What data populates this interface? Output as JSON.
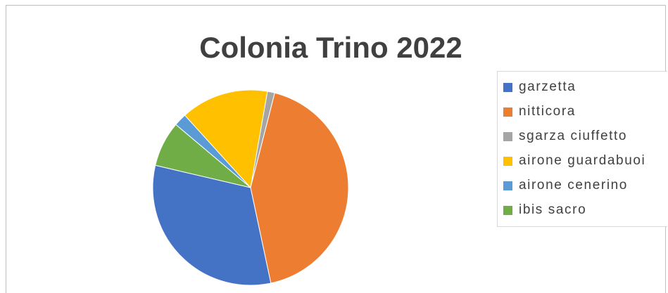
{
  "chart_data": {
    "type": "pie",
    "title": "Colonia Trino 2022",
    "legend_position": "right",
    "slices": [
      {
        "label": "garzetta",
        "value": 32,
        "color": "#4472c4"
      },
      {
        "label": "ibis sacro",
        "value": 7.5,
        "color": "#70ad47"
      },
      {
        "label": "airone cenerino",
        "value": 2.1,
        "color": "#5b9bd5"
      },
      {
        "label": "airone guardabuoi",
        "value": 14.5,
        "color": "#ffc000"
      },
      {
        "label": "sgarza ciuffetto",
        "value": 1.2,
        "color": "#a5a5a5"
      },
      {
        "label": "nitticora",
        "value": 42.7,
        "color": "#ed7d31"
      }
    ],
    "legend": [
      {
        "label": "garzetta",
        "color": "#4472c4"
      },
      {
        "label": "nitticora",
        "color": "#ed7d31"
      },
      {
        "label": "sgarza ciuffetto",
        "color": "#a5a5a5"
      },
      {
        "label": "airone guardabuoi",
        "color": "#ffc000"
      },
      {
        "label": "airone cenerino",
        "color": "#5b9bd5"
      },
      {
        "label": "ibis sacro",
        "color": "#70ad47"
      }
    ]
  }
}
